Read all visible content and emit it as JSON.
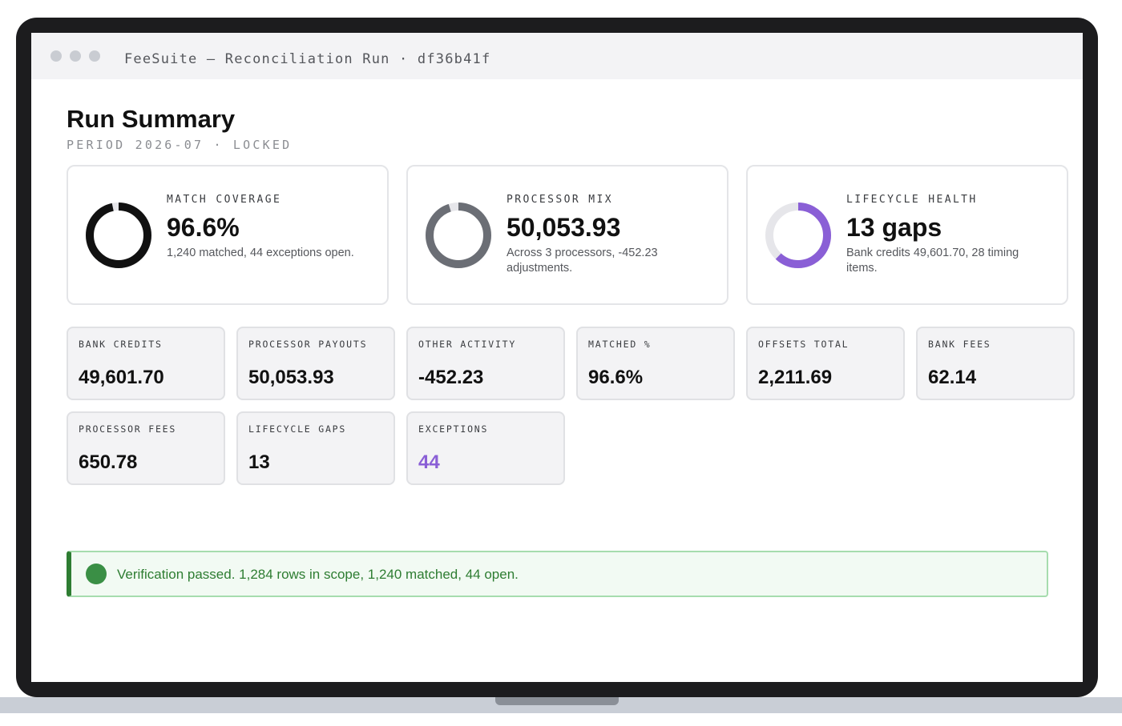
{
  "window": {
    "title": "FeeSuite — Reconciliation Run · df36b41f"
  },
  "header": {
    "title": "Run Summary",
    "subtitle": "PERIOD 2026-07 · LOCKED"
  },
  "cards": [
    {
      "label": "MATCH COVERAGE",
      "value": "96.6%",
      "desc": "1,240 matched, 44 exceptions open.",
      "ring_fraction": 0.966,
      "ring_color": "#111111"
    },
    {
      "label": "PROCESSOR MIX",
      "value": "50,053.93",
      "desc": "Across 3 processors, -452.23 adjustments.",
      "ring_fraction": 0.95,
      "ring_color": "#6b6e75"
    },
    {
      "label": "LIFECYCLE HEALTH",
      "value": "13 gaps",
      "desc": "Bank credits 49,601.70, 28 timing items.",
      "ring_fraction": 0.62,
      "ring_color": "#8a5fd6"
    }
  ],
  "tiles": [
    {
      "label": "BANK CREDITS",
      "value": "49,601.70"
    },
    {
      "label": "PROCESSOR PAYOUTS",
      "value": "50,053.93"
    },
    {
      "label": "OTHER ACTIVITY",
      "value": "-452.23"
    },
    {
      "label": "MATCHED %",
      "value": "96.6%"
    },
    {
      "label": "OFFSETS TOTAL",
      "value": "2,211.69"
    },
    {
      "label": "BANK FEES",
      "value": "62.14"
    },
    {
      "label": "PROCESSOR FEES",
      "value": "650.78"
    },
    {
      "label": "LIFECYCLE GAPS",
      "value": "13"
    },
    {
      "label": "EXCEPTIONS",
      "value": "44"
    }
  ],
  "banner": {
    "text": "Verification passed. 1,284 rows in scope, 1,240 matched, 44 open.",
    "color": "#2e7d32"
  },
  "colors": {
    "accent": "#8a5fd6",
    "ring_track": "#e6e6ea",
    "success": "#3a8f45"
  }
}
